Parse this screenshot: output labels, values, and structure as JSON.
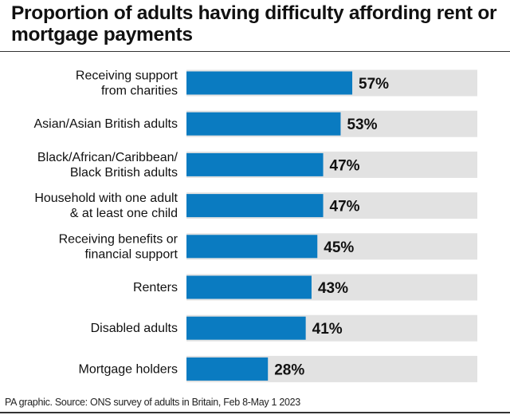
{
  "chart_data": {
    "type": "bar",
    "orientation": "horizontal",
    "title": "Proportion of adults having difficulty affording rent or mortgage payments",
    "categories": [
      [
        "Receiving support",
        "from charities"
      ],
      [
        "Asian/Asian British adults"
      ],
      [
        "Black/African/Caribbean/",
        "Black British adults"
      ],
      [
        "Household with one adult",
        "& at least one child"
      ],
      [
        "Receiving benefits or",
        "financial support"
      ],
      [
        "Renters"
      ],
      [
        "Disabled adults"
      ],
      [
        "Mortgage holders"
      ]
    ],
    "values": [
      57,
      53,
      47,
      47,
      45,
      43,
      41,
      28
    ],
    "value_labels": [
      "57%",
      "53%",
      "47%",
      "47%",
      "45%",
      "43%",
      "41%",
      "28%"
    ],
    "xlim": [
      0,
      100
    ],
    "unit": "%",
    "grid": false,
    "colors": {
      "bar": "#0a7bc1",
      "track": "#e2e2e2"
    }
  },
  "source": "PA graphic. Source: ONS survey of adults in Britain, Feb 8-May 1 2023"
}
